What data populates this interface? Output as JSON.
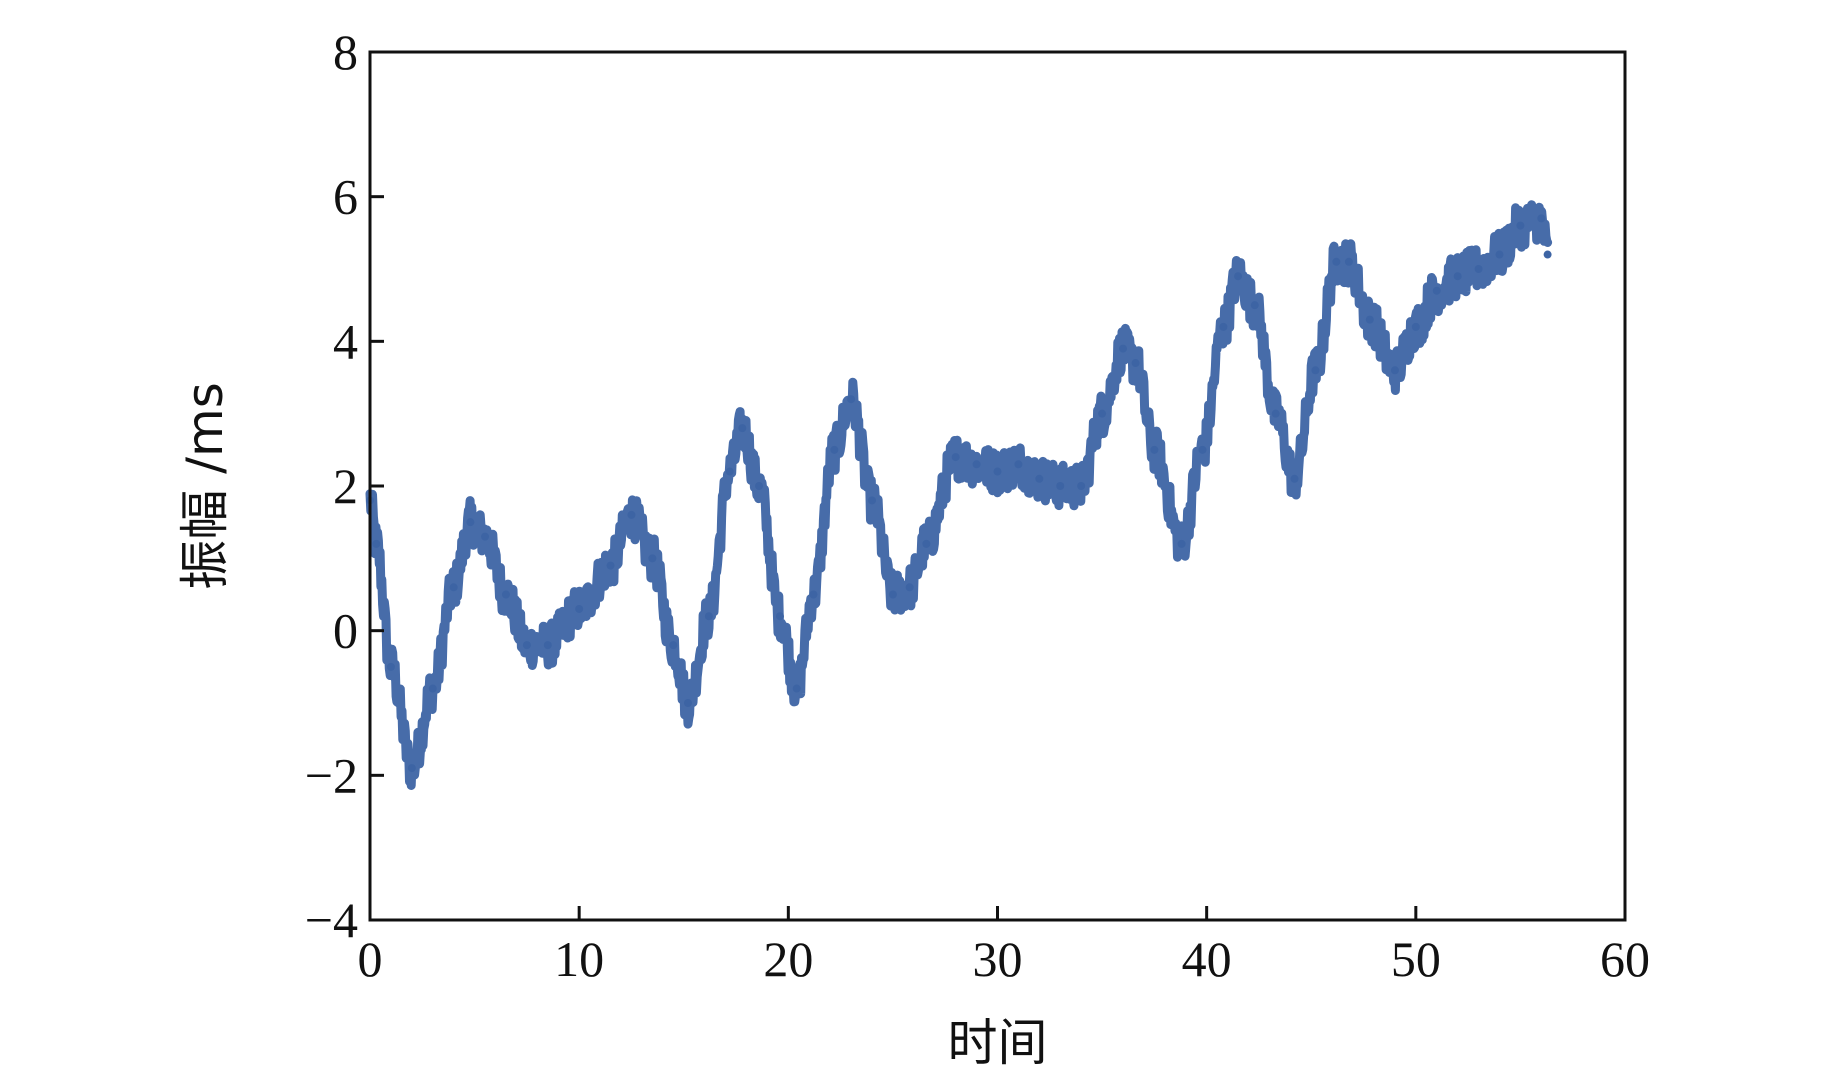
{
  "chart_data": {
    "type": "line",
    "title": "",
    "xlabel": "时间",
    "ylabel": "振幅 /ms",
    "xlim": [
      0,
      60
    ],
    "ylim": [
      -4,
      8
    ],
    "xticks": [
      0,
      10,
      20,
      30,
      40,
      50,
      60
    ],
    "yticks": [
      -4,
      -2,
      0,
      2,
      4,
      6,
      8
    ],
    "xtick_labels": [
      "0",
      "10",
      "20",
      "30",
      "40",
      "50",
      "60"
    ],
    "ytick_labels": [
      "−4",
      "−2",
      "0",
      "2",
      "4",
      "6",
      "8"
    ],
    "grid": false,
    "legend": "none",
    "series": [
      {
        "color": "#3d64a4",
        "noise_band": 0.3,
        "x": [
          0,
          0.3,
          1,
          2,
          3,
          4,
          4.8,
          5.5,
          6.5,
          7.5,
          8.5,
          10,
          11.5,
          12.5,
          13.5,
          14.5,
          15.2,
          16.2,
          17.2,
          17.8,
          18.6,
          19.6,
          20.4,
          21.2,
          22.2,
          23,
          24,
          25,
          25.8,
          26.6,
          28,
          29,
          30,
          31,
          32,
          33,
          34,
          35,
          36,
          36.6,
          37.5,
          38.8,
          39.8,
          40.8,
          41.5,
          42.3,
          43.3,
          44.2,
          45.2,
          46.2,
          46.8,
          47.8,
          49,
          50,
          51,
          52,
          53,
          54,
          55,
          56,
          56.3
        ],
        "y": [
          1.8,
          1.2,
          -0.5,
          -1.9,
          -0.8,
          0.6,
          1.5,
          1.3,
          0.5,
          -0.2,
          -0.2,
          0.3,
          0.9,
          1.6,
          1.0,
          -0.2,
          -1.0,
          0.2,
          2.2,
          2.8,
          2.0,
          0.2,
          -0.8,
          0.5,
          2.5,
          3.2,
          1.8,
          0.5,
          0.6,
          1.2,
          2.4,
          2.3,
          2.2,
          2.3,
          2.1,
          2.0,
          2.0,
          3.0,
          3.9,
          3.7,
          2.5,
          1.2,
          2.5,
          4.2,
          4.9,
          4.5,
          3.0,
          2.1,
          3.6,
          5.1,
          5.1,
          4.3,
          3.6,
          4.2,
          4.7,
          4.9,
          5.0,
          5.2,
          5.6,
          5.7,
          5.2
        ]
      }
    ]
  }
}
